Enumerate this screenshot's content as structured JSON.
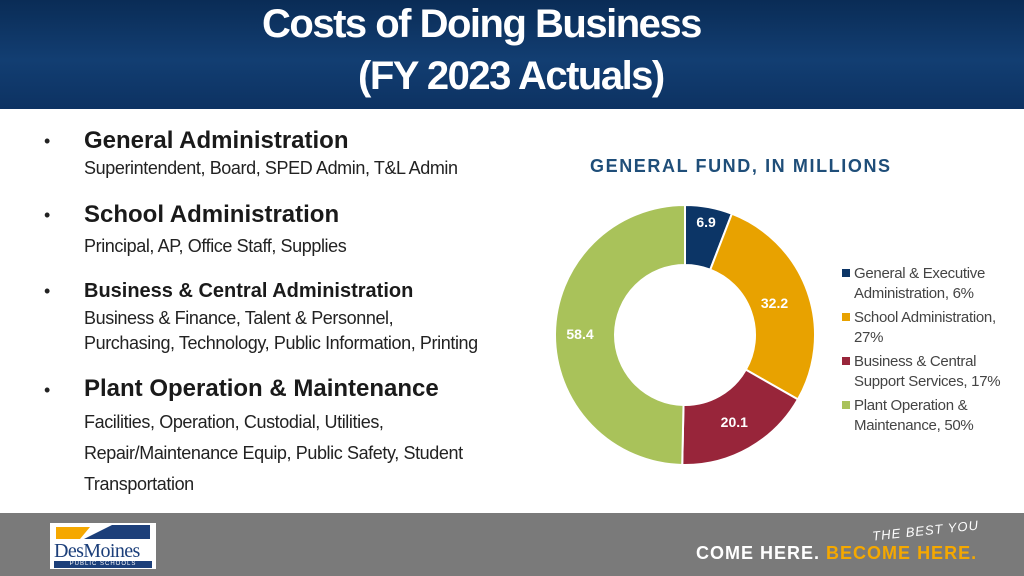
{
  "title": {
    "line1": "Costs of Doing Business",
    "line2": "(FY 2023 Actuals)"
  },
  "bullets": [
    {
      "heading": "General Administration",
      "details": [
        "Superintendent, Board, SPED Admin, T&L Admin"
      ]
    },
    {
      "heading": "School Administration",
      "details": [
        "Principal, AP, Office Staff, Supplies"
      ]
    },
    {
      "heading": "Business & Central Administration",
      "details": [
        "Business & Finance, Talent & Personnel,",
        "Purchasing, Technology, Public Information, Printing"
      ]
    },
    {
      "heading": "Plant Operation & Maintenance",
      "details": [
        "Facilities, Operation, Custodial, Utilities,",
        "Repair/Maintenance Equip, Public Safety, Student",
        "Transportation"
      ]
    }
  ],
  "chart_data": {
    "type": "pie",
    "subtype": "donut",
    "title": "GENERAL FUND, IN MILLIONS",
    "categories": [
      "General & Executive Administration, 6%",
      "School Administration, 27%",
      "Business & Central Support Services, 17%",
      "Plant Operation & Maintenance, 50%"
    ],
    "values": [
      6.9,
      32.2,
      20.1,
      58.4
    ],
    "data_labels": [
      "6.9",
      "32.2",
      "20.1",
      "58.4"
    ],
    "colors": [
      "#0c3566",
      "#e8a200",
      "#98253a",
      "#a9c25a"
    ],
    "legend_placement": "right"
  },
  "footer": {
    "logo_text": "DesMoines",
    "logo_subtext": "PUBLIC SCHOOLS",
    "slogan_script": "THE BEST YOU",
    "slogan_part1": "COME HERE.",
    "slogan_part2": "BECOME",
    "slogan_part3": "HERE.",
    "accent_color": "#f5a800"
  }
}
